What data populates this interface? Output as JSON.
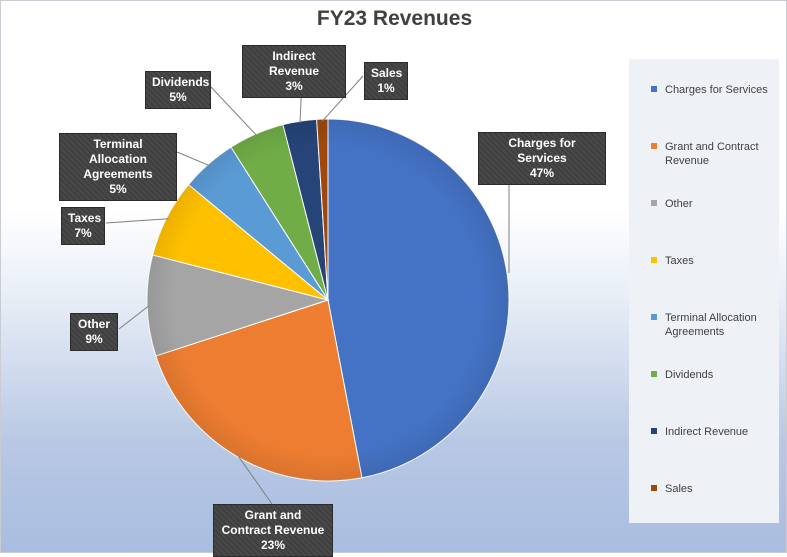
{
  "chart_data": {
    "type": "pie",
    "title": "FY23 Revenues",
    "slices": [
      {
        "name": "Charges for Services",
        "value": 47,
        "label_name": "Charges for Services",
        "label_value": "47%",
        "color": "#4472c4"
      },
      {
        "name": "Grant and Contract Revenue",
        "value": 23,
        "label_name": "Grant and Contract Revenue",
        "label_value": "23%",
        "color": "#ed7d31"
      },
      {
        "name": "Other",
        "value": 9,
        "label_name": "Other",
        "label_value": "9%",
        "color": "#a5a5a5"
      },
      {
        "name": "Taxes",
        "value": 7,
        "label_name": "Taxes",
        "label_value": "7%",
        "color": "#ffc000"
      },
      {
        "name": "Terminal Allocation Agreements",
        "value": 5,
        "label_name": "Terminal Allocation Agreements",
        "label_value": "5%",
        "color": "#5b9bd5"
      },
      {
        "name": "Dividends",
        "value": 5,
        "label_name": "Dividends",
        "label_value": "5%",
        "color": "#70ad47"
      },
      {
        "name": "Indirect Revenue",
        "value": 3,
        "label_name": "Indirect Revenue",
        "label_value": "3%",
        "color": "#264478"
      },
      {
        "name": "Sales",
        "value": 1,
        "label_name": "Sales",
        "label_value": "1%",
        "color": "#9e480e"
      }
    ],
    "legend_position": "right"
  }
}
